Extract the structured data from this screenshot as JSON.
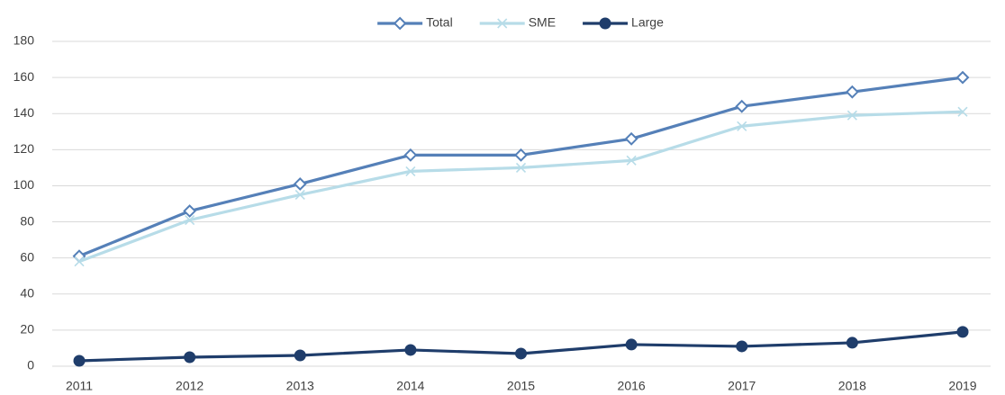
{
  "chart_data": {
    "type": "line",
    "categories": [
      "2011",
      "2012",
      "2013",
      "2014",
      "2015",
      "2016",
      "2017",
      "2018",
      "2019"
    ],
    "series": [
      {
        "name": "Total",
        "color": "#5580b8",
        "marker": "diamond",
        "values": [
          61,
          86,
          101,
          117,
          117,
          126,
          144,
          152,
          160
        ]
      },
      {
        "name": "SME",
        "color": "#b7dce8",
        "marker": "x",
        "values": [
          58,
          81,
          95,
          108,
          110,
          114,
          133,
          139,
          141
        ]
      },
      {
        "name": "Large",
        "color": "#1f3d6b",
        "marker": "circle",
        "values": [
          3,
          5,
          6,
          9,
          7,
          12,
          11,
          13,
          19
        ]
      }
    ],
    "ylim": [
      0,
      180
    ],
    "yticks": [
      0,
      20,
      40,
      60,
      80,
      100,
      120,
      140,
      160,
      180
    ],
    "grid": true,
    "legend": "top"
  }
}
